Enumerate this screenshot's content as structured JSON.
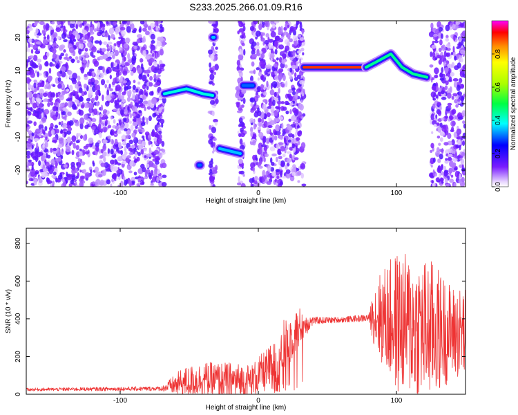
{
  "title": "S233.2025.266.01.09.R16",
  "chart_data": [
    {
      "type": "heatmap",
      "name": "spectrogram",
      "xlabel": "Height of straight line (km)",
      "ylabel": "Frequency (Hz)",
      "xlim": [
        -168,
        150
      ],
      "ylim": [
        -25,
        25
      ],
      "xticks": [
        -100,
        0,
        100
      ],
      "yticks": [
        -20,
        -10,
        0,
        10,
        20
      ],
      "colorbar": {
        "label": "Normalized spectral amplitude",
        "range": [
          0.0,
          1.0
        ],
        "ticks": [
          0.0,
          0.2,
          0.4,
          0.6,
          0.8
        ]
      },
      "noise_regions": [
        [
          -168,
          -68
        ],
        [
          -35,
          -30
        ],
        [
          -15,
          -10
        ],
        [
          -5,
          33
        ],
        [
          125,
          150
        ]
      ],
      "features": [
        {
          "x": [
            -68,
            -52,
            -40,
            -33
          ],
          "y": [
            3,
            4.5,
            3,
            2.5
          ],
          "level": 0.4
        },
        {
          "x": [
            -33,
            -32
          ],
          "y": [
            20,
            20
          ],
          "level": 0.35
        },
        {
          "x": [
            -43,
            -42
          ],
          "y": [
            -18.5,
            -18.5
          ],
          "level": 0.3
        },
        {
          "x": [
            -28,
            -13
          ],
          "y": [
            -13.5,
            -15
          ],
          "level": 0.35
        },
        {
          "x": [
            -11,
            -4
          ],
          "y": [
            5.5,
            5.5
          ],
          "level": 0.3
        },
        {
          "x": [
            33,
            52,
            78
          ],
          "y": [
            11,
            11,
            11
          ],
          "level": 0.9
        },
        {
          "x": [
            78,
            85,
            96,
            104,
            112,
            122
          ],
          "y": [
            11,
            12.5,
            15,
            11,
            9,
            8
          ],
          "level": 0.45
        }
      ]
    },
    {
      "type": "line",
      "name": "snr",
      "xlabel": "Height of straight line (km)",
      "ylabel": "SNR (10 * v/v)",
      "xlim": [
        -168,
        150
      ],
      "ylim": [
        0,
        880
      ],
      "xticks": [
        -100,
        0,
        100
      ],
      "yticks": [
        0,
        200,
        400,
        600,
        800
      ],
      "color": "#ee3333",
      "envelope": [
        {
          "x": -168,
          "base": 25,
          "amp": 8
        },
        {
          "x": -70,
          "base": 30,
          "amp": 12
        },
        {
          "x": -55,
          "base": 60,
          "amp": 80
        },
        {
          "x": -40,
          "base": 80,
          "amp": 90
        },
        {
          "x": -20,
          "base": 70,
          "amp": 100
        },
        {
          "x": -5,
          "base": 70,
          "amp": 90
        },
        {
          "x": 10,
          "base": 150,
          "amp": 120
        },
        {
          "x": 20,
          "base": 270,
          "amp": 150
        },
        {
          "x": 30,
          "base": 360,
          "amp": 100
        },
        {
          "x": 40,
          "base": 390,
          "amp": 20
        },
        {
          "x": 60,
          "base": 395,
          "amp": 15
        },
        {
          "x": 80,
          "base": 405,
          "amp": 20
        },
        {
          "x": 85,
          "base": 420,
          "amp": 200
        },
        {
          "x": 100,
          "base": 380,
          "amp": 380
        },
        {
          "x": 125,
          "base": 340,
          "amp": 380
        },
        {
          "x": 140,
          "base": 330,
          "amp": 250
        },
        {
          "x": 150,
          "base": 320,
          "amp": 250
        }
      ]
    }
  ]
}
